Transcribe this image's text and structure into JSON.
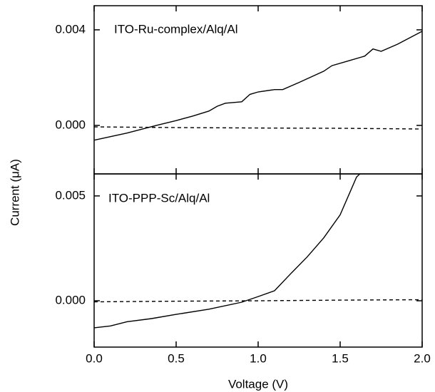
{
  "chart_data": [
    {
      "type": "line",
      "ylabel": "Current (μA)",
      "annotation": "ITO-Ru-complex/Alq/Al",
      "xlim": [
        0,
        2.0
      ],
      "ylim": [
        -0.00203,
        0.00501
      ],
      "yticks": [
        {
          "value": 0,
          "label": "0.000"
        },
        0.004
      ],
      "series": [
        {
          "color": "#000000",
          "style": "solid",
          "x": [
            0,
            0.2,
            0.38,
            0.5,
            0.6,
            0.7,
            0.75,
            0.8,
            0.9,
            0.95,
            1.0,
            1.1,
            1.15,
            1.25,
            1.4,
            1.45,
            1.55,
            1.65,
            1.7,
            1.75,
            1.85,
            2.0
          ],
          "values": [
            -0.00062,
            -0.00032,
            0,
            0.0002,
            0.00039,
            0.0006,
            0.0008,
            0.00093,
            0.00099,
            0.0013,
            0.0014,
            0.0015,
            0.0015,
            0.0018,
            0.00227,
            0.0025,
            0.0027,
            0.0029,
            0.0032,
            0.0031,
            0.0034,
            0.00394
          ]
        },
        {
          "color": "#000000",
          "style": "dashed",
          "x": [
            0,
            0.5,
            1.0,
            1.5,
            2.0
          ],
          "values": [
            -6e-05,
            -9e-05,
            -0.00011,
            -0.00012,
            -0.00015
          ]
        }
      ]
    },
    {
      "type": "line",
      "xlabel": "Voltage (V)",
      "annotation": "ITO-PPP-Sc/Alq/Al",
      "xlim": [
        0,
        2.0
      ],
      "ylim": [
        -0.00221,
        0.00605
      ],
      "xticks": [
        {
          "value": 0,
          "label": "0.0"
        },
        0.5,
        {
          "value": 1,
          "label": "1.0"
        },
        1.5,
        {
          "value": 2,
          "label": "2.0"
        }
      ],
      "yticks": [
        {
          "value": 0,
          "label": "0.000"
        },
        0.005
      ],
      "series": [
        {
          "color": "#000000",
          "style": "solid",
          "x": [
            0,
            0.1,
            0.2,
            0.35,
            0.5,
            0.7,
            0.9,
            1.0,
            1.1,
            1.2,
            1.3,
            1.4,
            1.5,
            1.6,
            1.62
          ],
          "values": [
            -0.00129,
            -0.0012,
            -0.001,
            -0.00085,
            -0.00065,
            -0.0004,
            -7e-05,
            0.0002,
            0.00048,
            0.0013,
            0.0021,
            0.003,
            0.0041,
            0.0059,
            0.00605
          ]
        },
        {
          "color": "#000000",
          "style": "dashed",
          "x": [
            0,
            0.5,
            1.0,
            1.5,
            2.0
          ],
          "values": [
            -5e-05,
            -2e-05,
            0.0,
            3e-05,
            5e-05
          ]
        }
      ]
    }
  ]
}
